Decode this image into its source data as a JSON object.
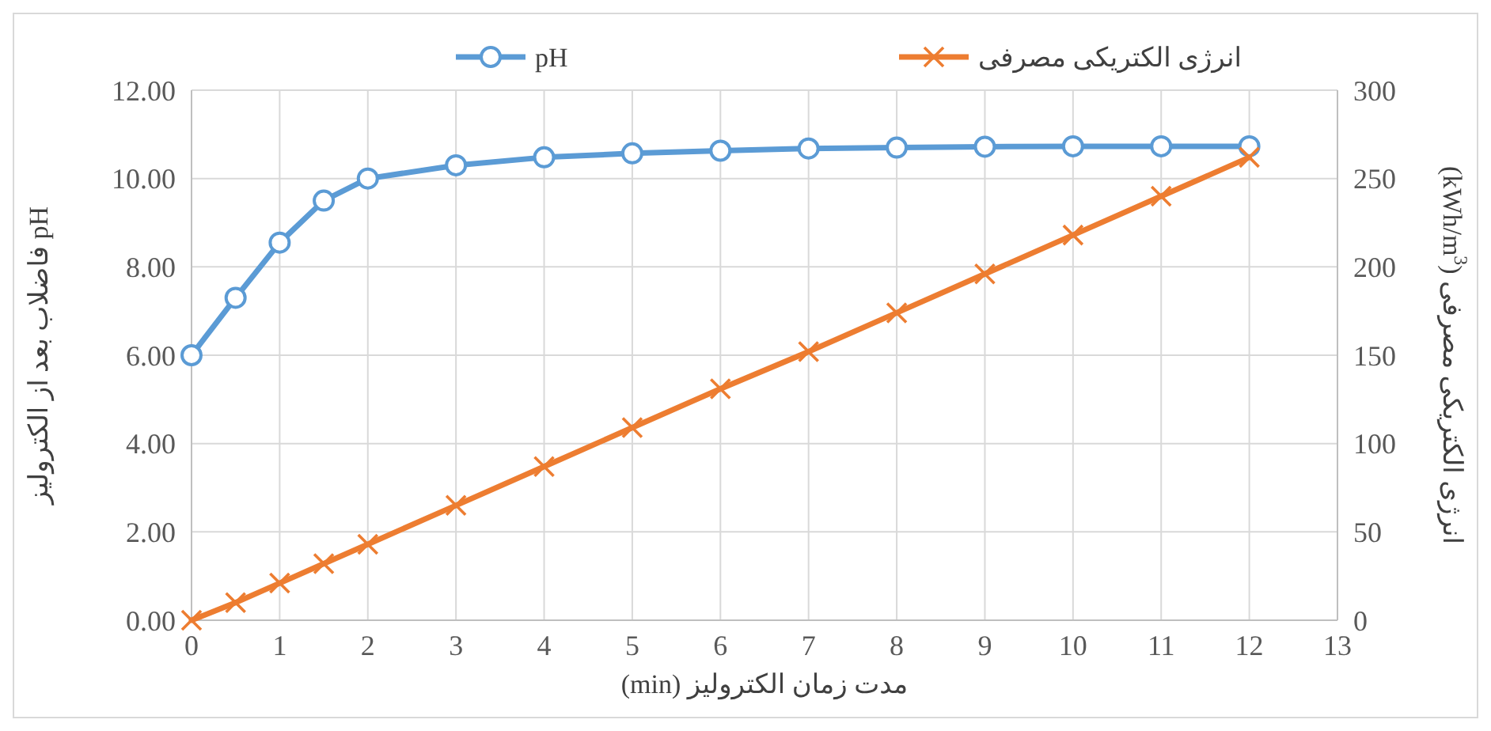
{
  "chart_data": {
    "type": "line",
    "xlabel": "مدت زمان الکترولیز (min)",
    "ylabel": "pH فاضلاب بعد از الکترولیز",
    "y2label": "انرژی الکتریکی مصرفی (kWh/m$^{3}$)",
    "x": [
      0,
      0.5,
      1,
      1.5,
      2,
      3,
      4,
      5,
      6,
      7,
      8,
      9,
      10,
      11,
      12
    ],
    "xlim": [
      0,
      13
    ],
    "xticks": [
      0,
      1,
      2,
      3,
      4,
      5,
      6,
      7,
      8,
      9,
      10,
      11,
      12,
      13
    ],
    "ylim": [
      0,
      12
    ],
    "yticks": [
      {
        "value": 0,
        "label": "0.00"
      },
      {
        "value": 2,
        "label": "2.00"
      },
      {
        "value": 4,
        "label": "4.00"
      },
      {
        "value": 6,
        "label": "6.00"
      },
      {
        "value": 8,
        "label": "8.00"
      },
      {
        "value": 10,
        "label": "10.00"
      },
      {
        "value": 12,
        "label": "12.00"
      }
    ],
    "y2lim": [
      0,
      300
    ],
    "y2ticks": [
      0,
      50,
      100,
      150,
      200,
      250,
      300
    ],
    "grid": true,
    "legend": "top",
    "line_style": "solid",
    "series": [
      {
        "name": "pH",
        "color": "#5b9bd5",
        "marker": "circle",
        "values": [
          6.0,
          7.3,
          8.55,
          9.5,
          10.0,
          10.3,
          10.48,
          10.57,
          10.63,
          10.68,
          10.7,
          10.72,
          10.73,
          10.73,
          10.73
        ]
      },
      {
        "name": "انرژی الکتریکی مصرفی",
        "color": "#ed7d31",
        "marker": "cross",
        "axis": "y2",
        "values": [
          0,
          10,
          21,
          32,
          43,
          65,
          87,
          109,
          131,
          152,
          174,
          196,
          218,
          240,
          262
        ]
      }
    ]
  }
}
